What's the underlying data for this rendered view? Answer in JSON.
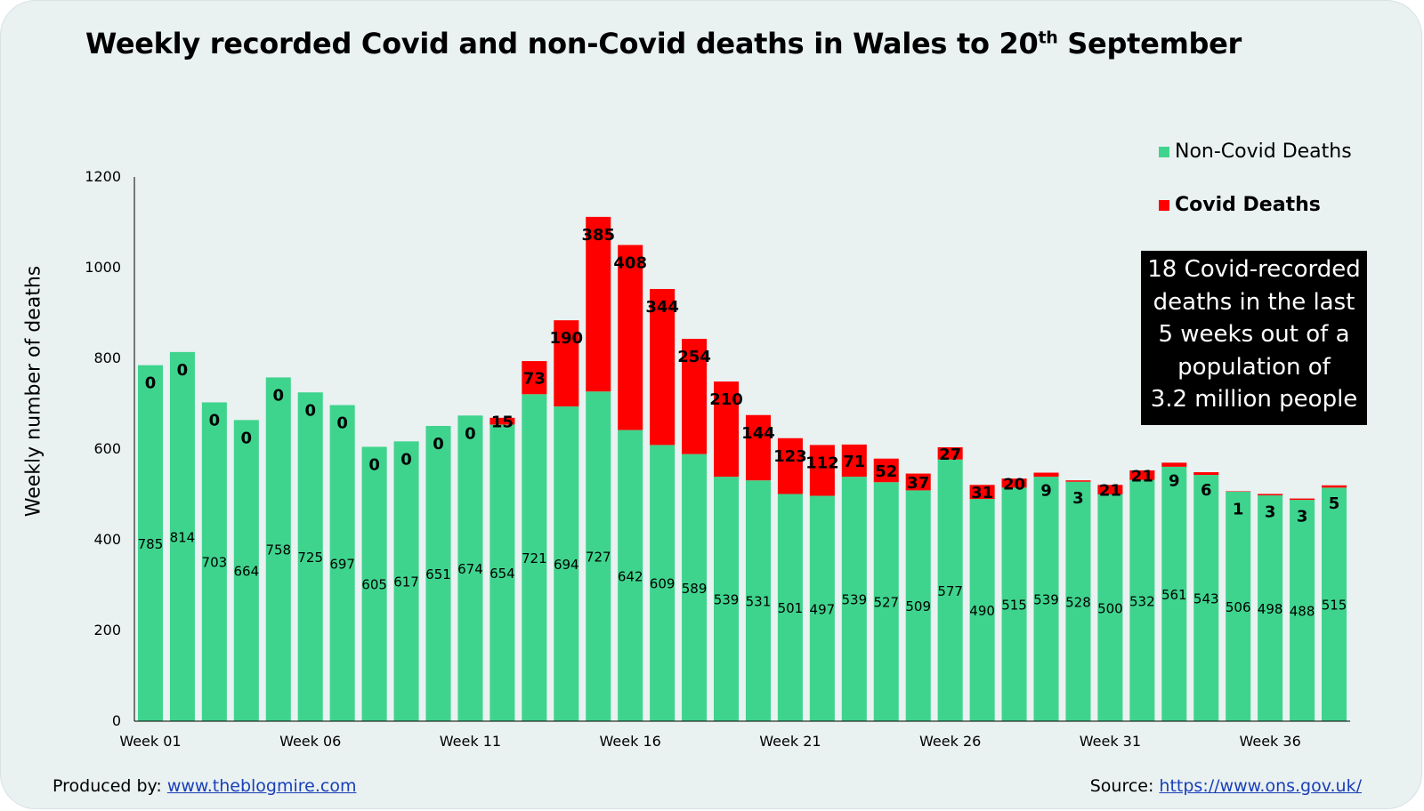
{
  "title_main": "Weekly recorded Covid and non-Covid deaths in Wales to 20",
  "title_sup": "th",
  "title_end": " September",
  "chart_data": {
    "type": "bar",
    "stacked": true,
    "title": "Weekly recorded Covid and non-Covid deaths in Wales to 20th September",
    "ylabel": "Weekly number of deaths",
    "xlabel": "",
    "ylim": [
      0,
      1200
    ],
    "yticks": [
      0,
      200,
      400,
      600,
      800,
      1000,
      1200
    ],
    "categories": [
      "Week 01",
      "Week 02",
      "Week 03",
      "Week 04",
      "Week 05",
      "Week 06",
      "Week 07",
      "Week 08",
      "Week 09",
      "Week 10",
      "Week 11",
      "Week 12",
      "Week 13",
      "Week 14",
      "Week 15",
      "Week 16",
      "Week 17",
      "Week 18",
      "Week 19",
      "Week 20",
      "Week 21",
      "Week 22",
      "Week 23",
      "Week 24",
      "Week 25",
      "Week 26",
      "Week 27",
      "Week 28",
      "Week 29",
      "Week 30",
      "Week 31",
      "Week 32",
      "Week 33",
      "Week 34",
      "Week 35",
      "Week 36",
      "Week 37",
      "Week 38"
    ],
    "xtick_labels": [
      "Week 01",
      "Week 06",
      "Week 11",
      "Week 16",
      "Week 21",
      "Week 26",
      "Week 31",
      "Week 36"
    ],
    "series": [
      {
        "name": "Non-Covid Deaths",
        "color": "#3fd48e",
        "values": [
          785,
          814,
          703,
          664,
          758,
          725,
          697,
          605,
          617,
          651,
          674,
          654,
          721,
          694,
          727,
          642,
          609,
          589,
          539,
          531,
          501,
          497,
          539,
          527,
          509,
          577,
          490,
          515,
          539,
          528,
          500,
          532,
          561,
          543,
          506,
          498,
          488,
          515
        ]
      },
      {
        "name": "Covid Deaths",
        "color": "#ff0000",
        "values": [
          0,
          0,
          0,
          0,
          0,
          0,
          0,
          0,
          0,
          0,
          0,
          15,
          73,
          190,
          385,
          408,
          344,
          254,
          210,
          144,
          123,
          112,
          71,
          52,
          37,
          27,
          31,
          20,
          9,
          3,
          21,
          21,
          9,
          6,
          1,
          3,
          3,
          5
        ]
      }
    ],
    "legend_position": "top-right"
  },
  "legend": {
    "noncovid_label": "Non-Covid Deaths",
    "covid_label": "Covid Deaths"
  },
  "callout": {
    "lines": [
      "18 Covid-recorded",
      "deaths in the last",
      "5 weeks out of a",
      "population of",
      "3.2 million people"
    ]
  },
  "footer": {
    "produced_prefix": "Produced by: ",
    "produced_link": "www.theblogmire.com",
    "source_prefix": "Source: ",
    "source_link": "https://www.ons.gov.uk/"
  }
}
